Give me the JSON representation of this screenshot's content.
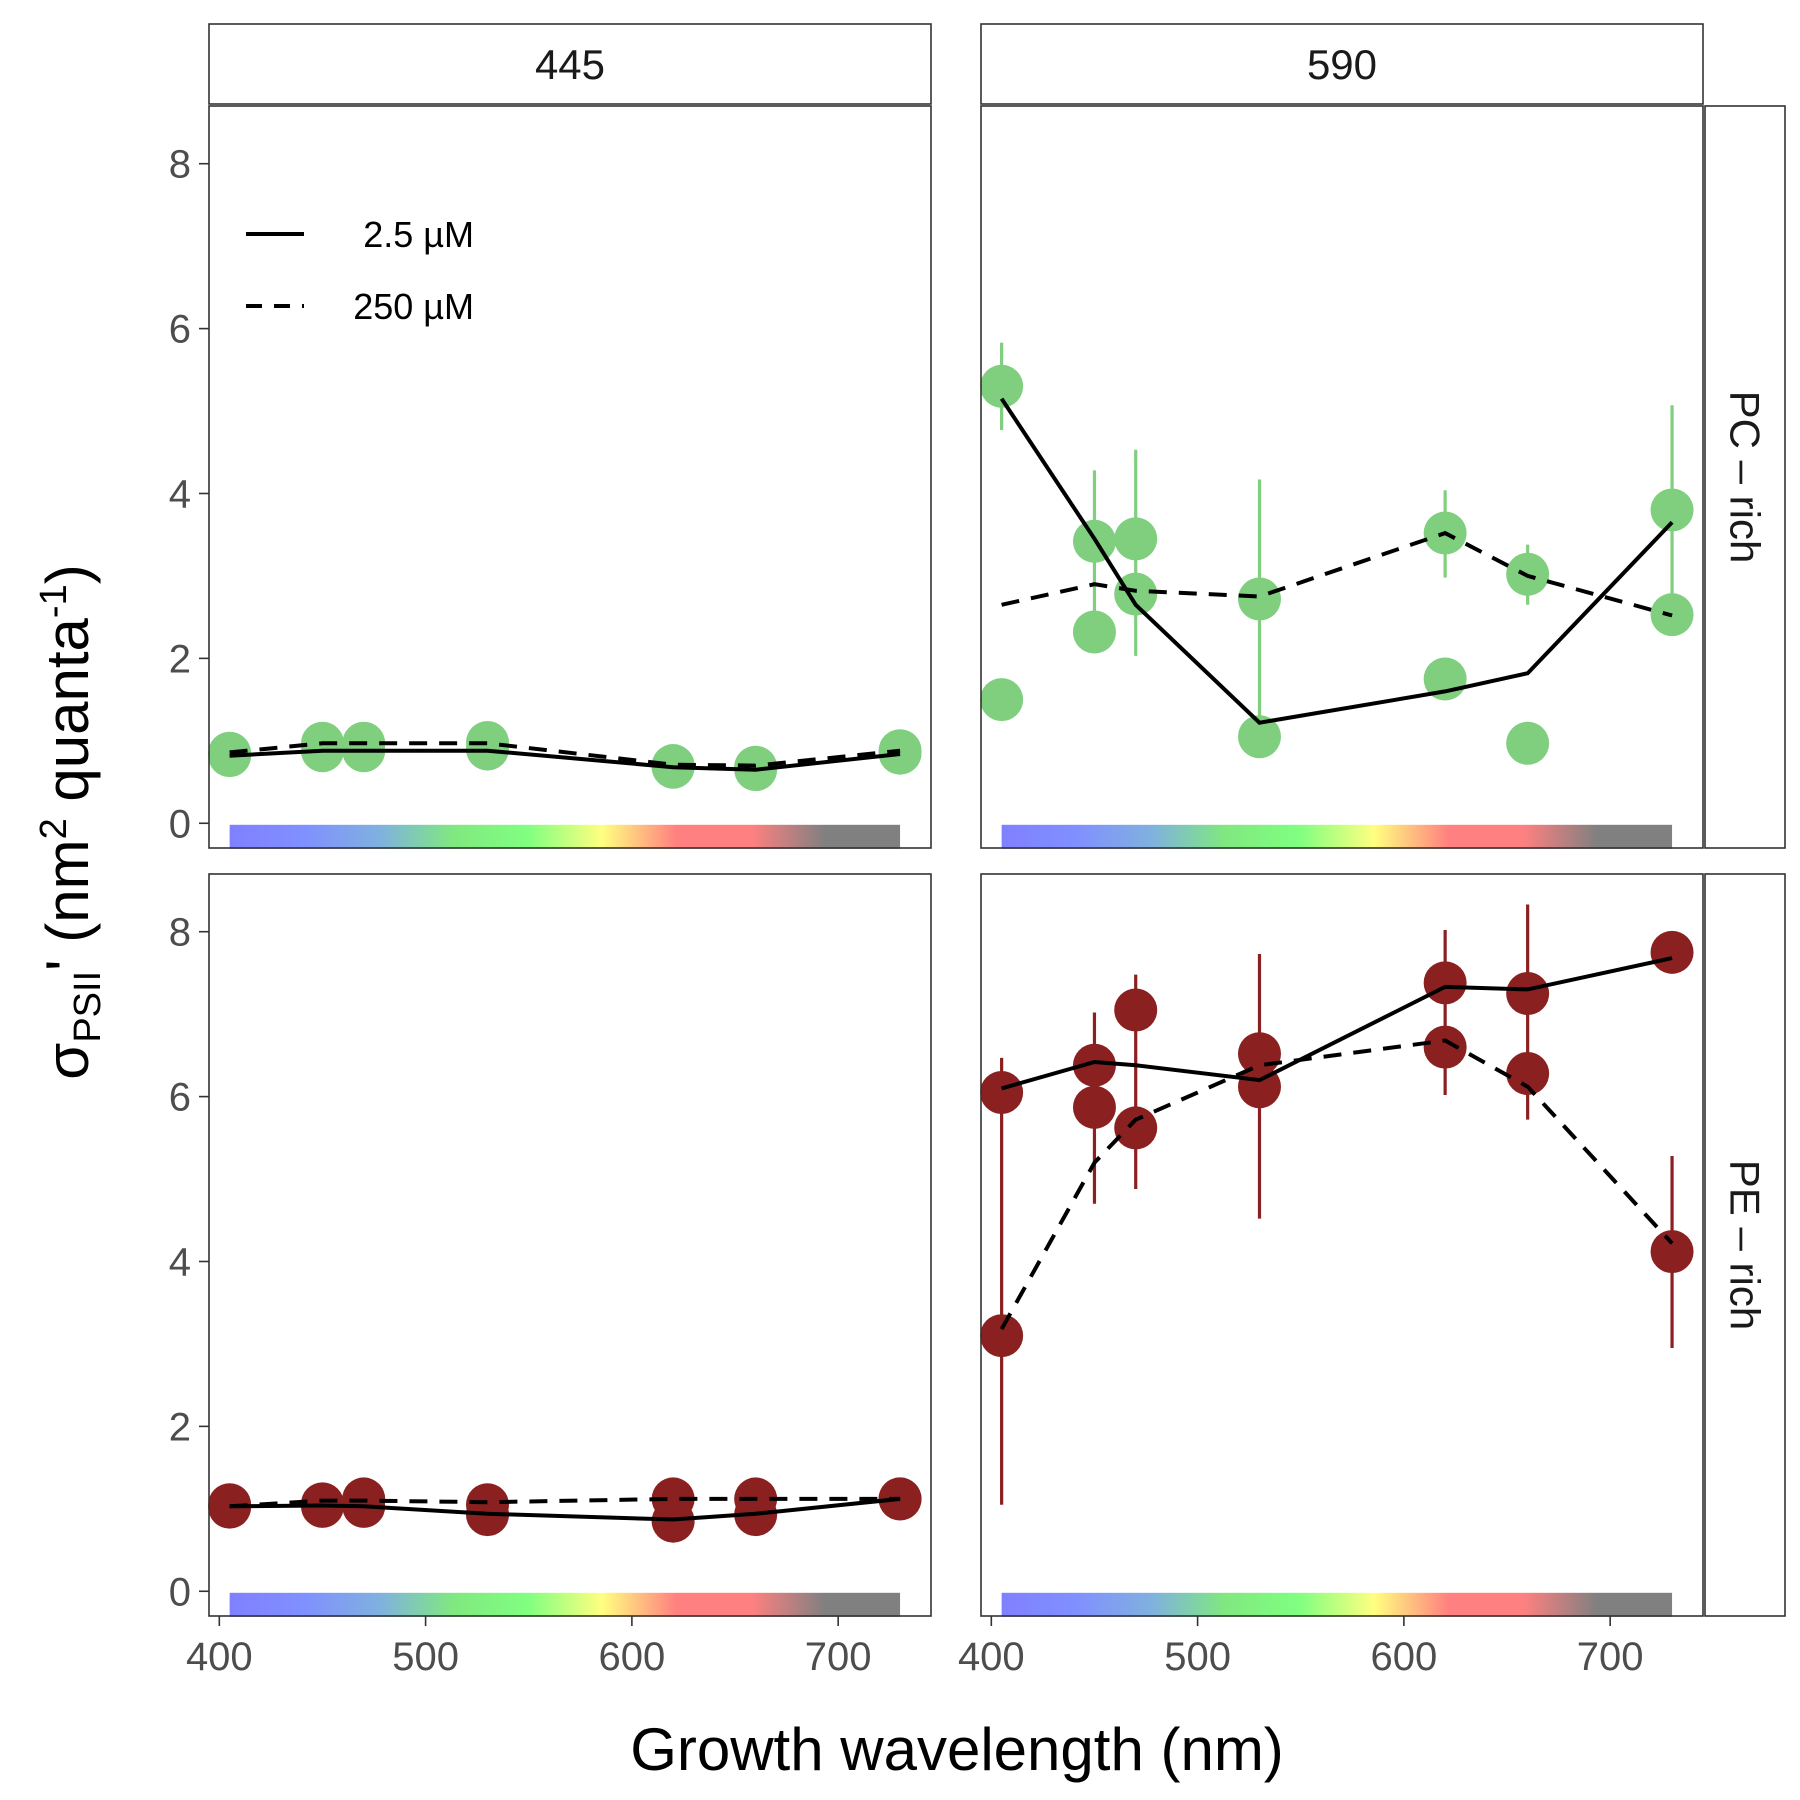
{
  "chart_data": {
    "type": "scatter",
    "xlabel": "Growth wavelength (nm)",
    "ylabel": {
      "symbol": "σ",
      "subscript": "PSII",
      "prime": "'",
      "units_open": " (nm",
      "units_sup1": "2",
      "units_mid": " quanta",
      "units_sup2": "-1",
      "units_close": ")"
    },
    "xlim": [
      395,
      745
    ],
    "ylim": [
      -0.3,
      8.7
    ],
    "x_ticks": [
      400,
      500,
      600,
      700
    ],
    "y_ticks": [
      0,
      2,
      4,
      6,
      8
    ],
    "grid": false,
    "legend": {
      "position": "top-left",
      "entries": [
        {
          "label": " 2.5 µM",
          "linetype": "solid"
        },
        {
          "label": "250 µM",
          "linetype": "dashed"
        }
      ]
    },
    "column_facets": [
      "445",
      "590"
    ],
    "row_facets": [
      "PC – rich",
      "PE – rich"
    ],
    "colors": {
      "PC – rich": "#7fcf7f",
      "PE – rich": "#8b2020",
      "line": "#000000",
      "panel_border": "#333333"
    },
    "spectrum_colors": [
      "#8080ff",
      "#8090ff",
      "#80b0e0",
      "#80e880",
      "#80ff80",
      "#ffff80",
      "#ff8080",
      "#ff8080",
      "#808080",
      "#808080"
    ],
    "panels": [
      {
        "col": "445",
        "row": "PC – rich",
        "points": [
          {
            "x": 405,
            "y": 0.85
          },
          {
            "x": 405,
            "y": 0.82
          },
          {
            "x": 450,
            "y": 0.97
          },
          {
            "x": 450,
            "y": 0.88
          },
          {
            "x": 470,
            "y": 0.97
          },
          {
            "x": 470,
            "y": 0.88
          },
          {
            "x": 530,
            "y": 0.98
          },
          {
            "x": 530,
            "y": 0.9
          },
          {
            "x": 620,
            "y": 0.68
          },
          {
            "x": 620,
            "y": 0.7
          },
          {
            "x": 660,
            "y": 0.65
          },
          {
            "x": 660,
            "y": 0.68
          },
          {
            "x": 730,
            "y": 0.88
          },
          {
            "x": 730,
            "y": 0.85
          }
        ],
        "error_bars": [],
        "lines": [
          {
            "name": " 2.5 µM",
            "x": [
              405,
              450,
              470,
              530,
              620,
              660,
              730
            ],
            "y": [
              0.82,
              0.88,
              0.88,
              0.88,
              0.68,
              0.65,
              0.84
            ]
          },
          {
            "name": "250 µM",
            "x": [
              405,
              450,
              470,
              530,
              620,
              660,
              730
            ],
            "y": [
              0.86,
              0.97,
              0.97,
              0.97,
              0.71,
              0.7,
              0.88
            ]
          }
        ]
      },
      {
        "col": "590",
        "row": "PC – rich",
        "points": [
          {
            "x": 405,
            "y": 5.3
          },
          {
            "x": 405,
            "y": 1.5
          },
          {
            "x": 450,
            "y": 3.42
          },
          {
            "x": 450,
            "y": 2.32
          },
          {
            "x": 470,
            "y": 3.45
          },
          {
            "x": 470,
            "y": 2.78
          },
          {
            "x": 530,
            "y": 2.72
          },
          {
            "x": 530,
            "y": 1.05
          },
          {
            "x": 620,
            "y": 3.52
          },
          {
            "x": 620,
            "y": 1.75
          },
          {
            "x": 660,
            "y": 3.02
          },
          {
            "x": 660,
            "y": 0.97
          },
          {
            "x": 730,
            "y": 3.8
          },
          {
            "x": 730,
            "y": 2.53
          }
        ],
        "error_bars": [
          {
            "x": 405,
            "ymin": 4.77,
            "ymax": 5.83
          },
          {
            "x": 450,
            "ymin": 2.55,
            "ymax": 4.28
          },
          {
            "x": 470,
            "ymin": 2.03,
            "ymax": 4.53
          },
          {
            "x": 530,
            "ymin": 1.25,
            "ymax": 4.17
          },
          {
            "x": 620,
            "ymin": 2.98,
            "ymax": 4.04
          },
          {
            "x": 660,
            "ymin": 2.65,
            "ymax": 3.38
          },
          {
            "x": 730,
            "ymin": 2.5,
            "ymax": 5.07
          }
        ],
        "lines": [
          {
            "name": " 2.5 µM",
            "x": [
              405,
              450,
              470,
              530,
              620,
              660,
              730
            ],
            "y": [
              5.15,
              3.45,
              2.65,
              1.22,
              1.6,
              1.82,
              3.65
            ]
          },
          {
            "name": "250 µM",
            "x": [
              405,
              450,
              470,
              530,
              620,
              660,
              730
            ],
            "y": [
              2.65,
              2.9,
              2.82,
              2.75,
              3.52,
              3.0,
              2.52
            ]
          }
        ]
      },
      {
        "col": "445",
        "row": "PE – rich",
        "points": [
          {
            "x": 405,
            "y": 1.05
          },
          {
            "x": 405,
            "y": 1.02
          },
          {
            "x": 450,
            "y": 1.06
          },
          {
            "x": 450,
            "y": 1.03
          },
          {
            "x": 470,
            "y": 1.12
          },
          {
            "x": 470,
            "y": 1.03
          },
          {
            "x": 530,
            "y": 1.05
          },
          {
            "x": 530,
            "y": 0.93
          },
          {
            "x": 620,
            "y": 1.12
          },
          {
            "x": 620,
            "y": 0.85
          },
          {
            "x": 660,
            "y": 1.12
          },
          {
            "x": 660,
            "y": 0.93
          },
          {
            "x": 730,
            "y": 1.12
          },
          {
            "x": 730,
            "y": 1.12
          }
        ],
        "error_bars": [],
        "lines": [
          {
            "name": " 2.5 µM",
            "x": [
              405,
              450,
              470,
              530,
              620,
              660,
              730
            ],
            "y": [
              1.03,
              1.04,
              1.03,
              0.94,
              0.87,
              0.94,
              1.12
            ]
          },
          {
            "name": "250 µM",
            "x": [
              405,
              450,
              470,
              530,
              620,
              660,
              730
            ],
            "y": [
              1.03,
              1.1,
              1.1,
              1.08,
              1.12,
              1.12,
              1.12
            ]
          }
        ]
      },
      {
        "col": "590",
        "row": "PE – rich",
        "points": [
          {
            "x": 405,
            "y": 6.05
          },
          {
            "x": 405,
            "y": 3.1
          },
          {
            "x": 450,
            "y": 6.38
          },
          {
            "x": 450,
            "y": 5.87
          },
          {
            "x": 470,
            "y": 7.05
          },
          {
            "x": 470,
            "y": 5.62
          },
          {
            "x": 530,
            "y": 6.52
          },
          {
            "x": 530,
            "y": 6.12
          },
          {
            "x": 620,
            "y": 7.38
          },
          {
            "x": 620,
            "y": 6.6
          },
          {
            "x": 660,
            "y": 7.25
          },
          {
            "x": 660,
            "y": 6.28
          },
          {
            "x": 730,
            "y": 7.75
          },
          {
            "x": 730,
            "y": 4.12
          }
        ],
        "error_bars": [
          {
            "x": 405,
            "ymin": 1.05,
            "ymax": 6.47
          },
          {
            "x": 450,
            "ymin": 4.7,
            "ymax": 7.02
          },
          {
            "x": 470,
            "ymin": 4.88,
            "ymax": 7.48
          },
          {
            "x": 530,
            "ymin": 4.52,
            "ymax": 7.73
          },
          {
            "x": 620,
            "ymin": 6.02,
            "ymax": 8.02
          },
          {
            "x": 660,
            "ymin": 5.72,
            "ymax": 8.33
          },
          {
            "x": 730,
            "ymin": 2.95,
            "ymax": 5.28
          }
        ],
        "lines": [
          {
            "name": " 2.5 µM",
            "x": [
              405,
              450,
              470,
              530,
              620,
              660,
              730
            ],
            "y": [
              6.1,
              6.42,
              6.38,
              6.2,
              7.33,
              7.3,
              7.68
            ]
          },
          {
            "name": "250 µM",
            "x": [
              405,
              450,
              470,
              530,
              620,
              660,
              730
            ],
            "y": [
              3.18,
              5.2,
              5.72,
              6.38,
              6.68,
              6.12,
              4.22
            ]
          }
        ]
      }
    ]
  }
}
